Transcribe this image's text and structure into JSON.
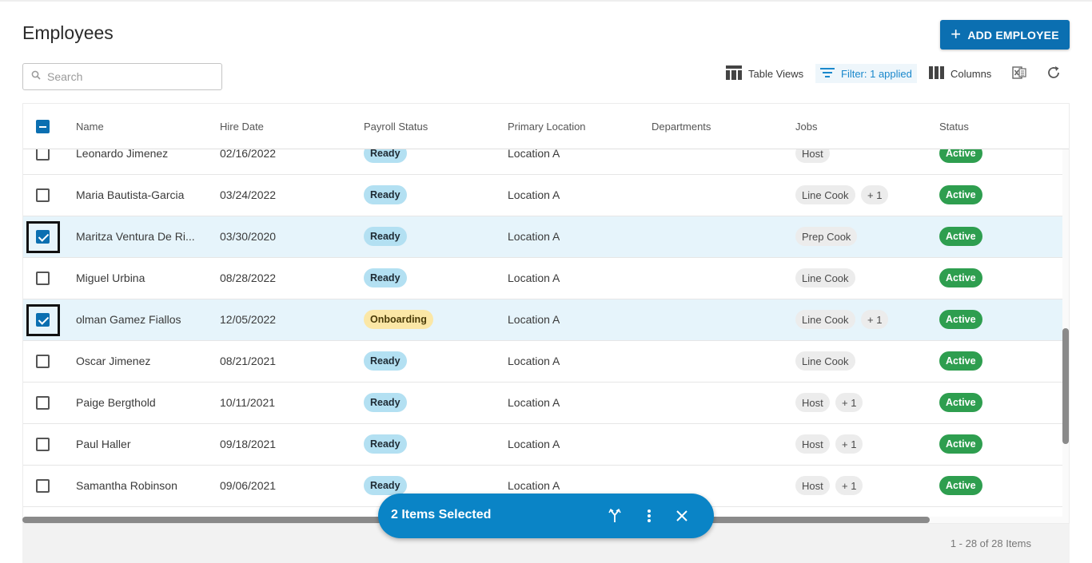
{
  "page": {
    "title": "Employees"
  },
  "header_actions": {
    "add_label": "ADD EMPLOYEE"
  },
  "search": {
    "placeholder": "Search"
  },
  "toolbar": {
    "table_views": "Table Views",
    "filter": "Filter: 1 applied",
    "columns": "Columns"
  },
  "columns": [
    "Name",
    "Hire Date",
    "Payroll Status",
    "Primary Location",
    "Departments",
    "Jobs",
    "Status"
  ],
  "rows": [
    {
      "name": "Leonardo Jimenez",
      "hire": "02/16/2022",
      "payroll": "Ready",
      "payroll_type": "ready",
      "location": "Location A",
      "job": "Host",
      "extra": "",
      "status": "Active",
      "checked": false
    },
    {
      "name": "Maria Bautista-Garcia",
      "hire": "03/24/2022",
      "payroll": "Ready",
      "payroll_type": "ready",
      "location": "Location A",
      "job": "Line Cook",
      "extra": "+ 1",
      "status": "Active",
      "checked": false
    },
    {
      "name": "Maritza Ventura De Ri...",
      "hire": "03/30/2020",
      "payroll": "Ready",
      "payroll_type": "ready",
      "location": "Location A",
      "job": "Prep Cook",
      "extra": "",
      "status": "Active",
      "checked": true
    },
    {
      "name": "Miguel Urbina",
      "hire": "08/28/2022",
      "payroll": "Ready",
      "payroll_type": "ready",
      "location": "Location A",
      "job": "Line Cook",
      "extra": "",
      "status": "Active",
      "checked": false
    },
    {
      "name": "olman Gamez Fiallos",
      "hire": "12/05/2022",
      "payroll": "Onboarding",
      "payroll_type": "onboarding",
      "location": "Location A",
      "job": "Line Cook",
      "extra": "+ 1",
      "status": "Active",
      "checked": true
    },
    {
      "name": "Oscar Jimenez",
      "hire": "08/21/2021",
      "payroll": "Ready",
      "payroll_type": "ready",
      "location": "Location A",
      "job": "Line Cook",
      "extra": "",
      "status": "Active",
      "checked": false
    },
    {
      "name": "Paige Bergthold",
      "hire": "10/11/2021",
      "payroll": "Ready",
      "payroll_type": "ready",
      "location": "Location A",
      "job": "Host",
      "extra": "+ 1",
      "status": "Active",
      "checked": false
    },
    {
      "name": "Paul Haller",
      "hire": "09/18/2021",
      "payroll": "Ready",
      "payroll_type": "ready",
      "location": "Location A",
      "job": "Host",
      "extra": "+ 1",
      "status": "Active",
      "checked": false
    },
    {
      "name": "Samantha Robinson",
      "hire": "09/06/2021",
      "payroll": "Ready",
      "payroll_type": "ready",
      "location": "Location A",
      "job": "Host",
      "extra": "+ 1",
      "status": "Active",
      "checked": false
    }
  ],
  "selection_bar": {
    "label": "2 Items Selected"
  },
  "footer": {
    "count": "1 - 28 of 28 Items"
  },
  "colors": {
    "primary": "#0b6fb1",
    "selection_bar": "#0a84c6",
    "active_green": "#2e9e4f",
    "ready_blue": "#b3e0f2",
    "onboarding_yellow": "#fbe7a6",
    "selected_row": "#e6f4fb"
  },
  "icons": [
    "plus-icon",
    "search-icon",
    "table-views-icon",
    "filter-icon",
    "columns-icon",
    "excel-export-icon",
    "refresh-icon",
    "merge-icon",
    "more-vertical-icon",
    "close-icon"
  ]
}
